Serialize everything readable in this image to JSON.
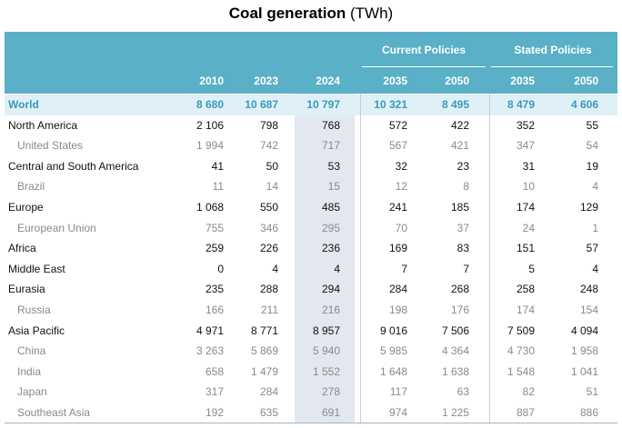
{
  "title": {
    "main": "Coal generation",
    "unit": "(TWh)"
  },
  "groups": [
    "Current Policies",
    "Stated Policies"
  ],
  "columns": [
    "2010",
    "2023",
    "2024",
    "2035",
    "2050",
    "2035",
    "2050"
  ],
  "rows": [
    {
      "label": "World",
      "type": "world",
      "values": [
        "8 680",
        "10 687",
        "10 797",
        "10 321",
        "8 495",
        "8 479",
        "4 606"
      ]
    },
    {
      "label": "North America",
      "type": "region",
      "values": [
        "2 106",
        "798",
        "768",
        "572",
        "422",
        "352",
        "55"
      ]
    },
    {
      "label": "United States",
      "type": "sub",
      "values": [
        "1 994",
        "742",
        "717",
        "567",
        "421",
        "347",
        "54"
      ]
    },
    {
      "label": "Central and South America",
      "type": "region",
      "values": [
        "41",
        "50",
        "53",
        "32",
        "23",
        "31",
        "19"
      ]
    },
    {
      "label": "Brazil",
      "type": "sub",
      "values": [
        "11",
        "14",
        "15",
        "12",
        "8",
        "10",
        "4"
      ]
    },
    {
      "label": "Europe",
      "type": "region",
      "values": [
        "1 068",
        "550",
        "485",
        "241",
        "185",
        "174",
        "129"
      ]
    },
    {
      "label": "European Union",
      "type": "sub",
      "values": [
        "755",
        "346",
        "295",
        "70",
        "37",
        "24",
        "1"
      ]
    },
    {
      "label": "Africa",
      "type": "region",
      "values": [
        "259",
        "226",
        "236",
        "169",
        "83",
        "151",
        "57"
      ]
    },
    {
      "label": "Middle East",
      "type": "region",
      "values": [
        "0",
        "4",
        "4",
        "7",
        "7",
        "5",
        "4"
      ]
    },
    {
      "label": "Eurasia",
      "type": "region",
      "values": [
        "235",
        "288",
        "294",
        "284",
        "268",
        "258",
        "248"
      ]
    },
    {
      "label": "Russia",
      "type": "sub",
      "values": [
        "166",
        "211",
        "216",
        "198",
        "176",
        "174",
        "154"
      ]
    },
    {
      "label": "Asia Pacific",
      "type": "region",
      "values": [
        "4 971",
        "8 771",
        "8 957",
        "9 016",
        "7 506",
        "7 509",
        "4 094"
      ]
    },
    {
      "label": "China",
      "type": "sub",
      "values": [
        "3 263",
        "5 869",
        "5 940",
        "5 985",
        "4 364",
        "4 730",
        "1 958"
      ]
    },
    {
      "label": "India",
      "type": "sub",
      "values": [
        "658",
        "1 479",
        "1 552",
        "1 648",
        "1 638",
        "1 548",
        "1 041"
      ]
    },
    {
      "label": "Japan",
      "type": "sub",
      "values": [
        "317",
        "284",
        "278",
        "117",
        "63",
        "82",
        "51"
      ]
    },
    {
      "label": "Southeast Asia",
      "type": "sub",
      "values": [
        "192",
        "635",
        "691",
        "974",
        "1 225",
        "887",
        "886"
      ]
    }
  ],
  "colors": {
    "header": "#5ab0c6",
    "world_text": "#3a9ab8",
    "world_row": "#dff0f6",
    "highlight_2024": "#e3e7ef",
    "sub_text": "#8a8a8a"
  }
}
